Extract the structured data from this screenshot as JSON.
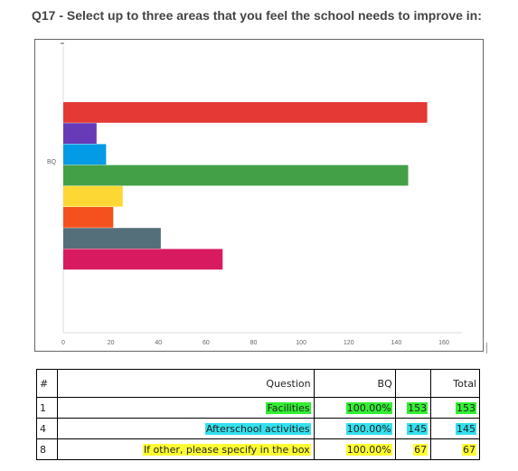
{
  "title": "Q17 - Select up to three areas that you feel the school needs to improve in:",
  "chart_data": {
    "type": "bar",
    "orientation": "horizontal",
    "categories": [
      "BQ"
    ],
    "series": [
      {
        "color": "#e53935",
        "values": [
          153
        ]
      },
      {
        "color": "#673ab7",
        "values": [
          14
        ]
      },
      {
        "color": "#039be5",
        "values": [
          18
        ]
      },
      {
        "color": "#43a047",
        "values": [
          145
        ]
      },
      {
        "color": "#fdd835",
        "values": [
          25
        ]
      },
      {
        "color": "#f4511e",
        "values": [
          21
        ]
      },
      {
        "color": "#546e7a",
        "values": [
          41
        ]
      },
      {
        "color": "#d81b60",
        "values": [
          67
        ]
      }
    ],
    "xlim": [
      0,
      165
    ],
    "x_ticks": [
      "0",
      "20",
      "40",
      "60",
      "80",
      "100",
      "120",
      "140",
      "160"
    ],
    "y_tick_labels": [
      "BQ"
    ],
    "grid": false,
    "legend": "none"
  },
  "table": {
    "headers": {
      "num": "#",
      "question": "Question",
      "bq": "BQ",
      "n": "",
      "total": "Total"
    },
    "rows": [
      {
        "num": "1",
        "question": "Facilities",
        "bq": "100.00%",
        "n": "153",
        "total": "153",
        "highlight": "#33ee33"
      },
      {
        "num": "4",
        "question": "Afterschool activities",
        "bq": "100.00%",
        "n": "145",
        "total": "145",
        "highlight": "#33e0ee"
      },
      {
        "num": "8",
        "question": "If other, please specify in the box",
        "bq": "100.00%",
        "n": "67",
        "total": "67",
        "highlight": "#ffff33"
      }
    ]
  }
}
